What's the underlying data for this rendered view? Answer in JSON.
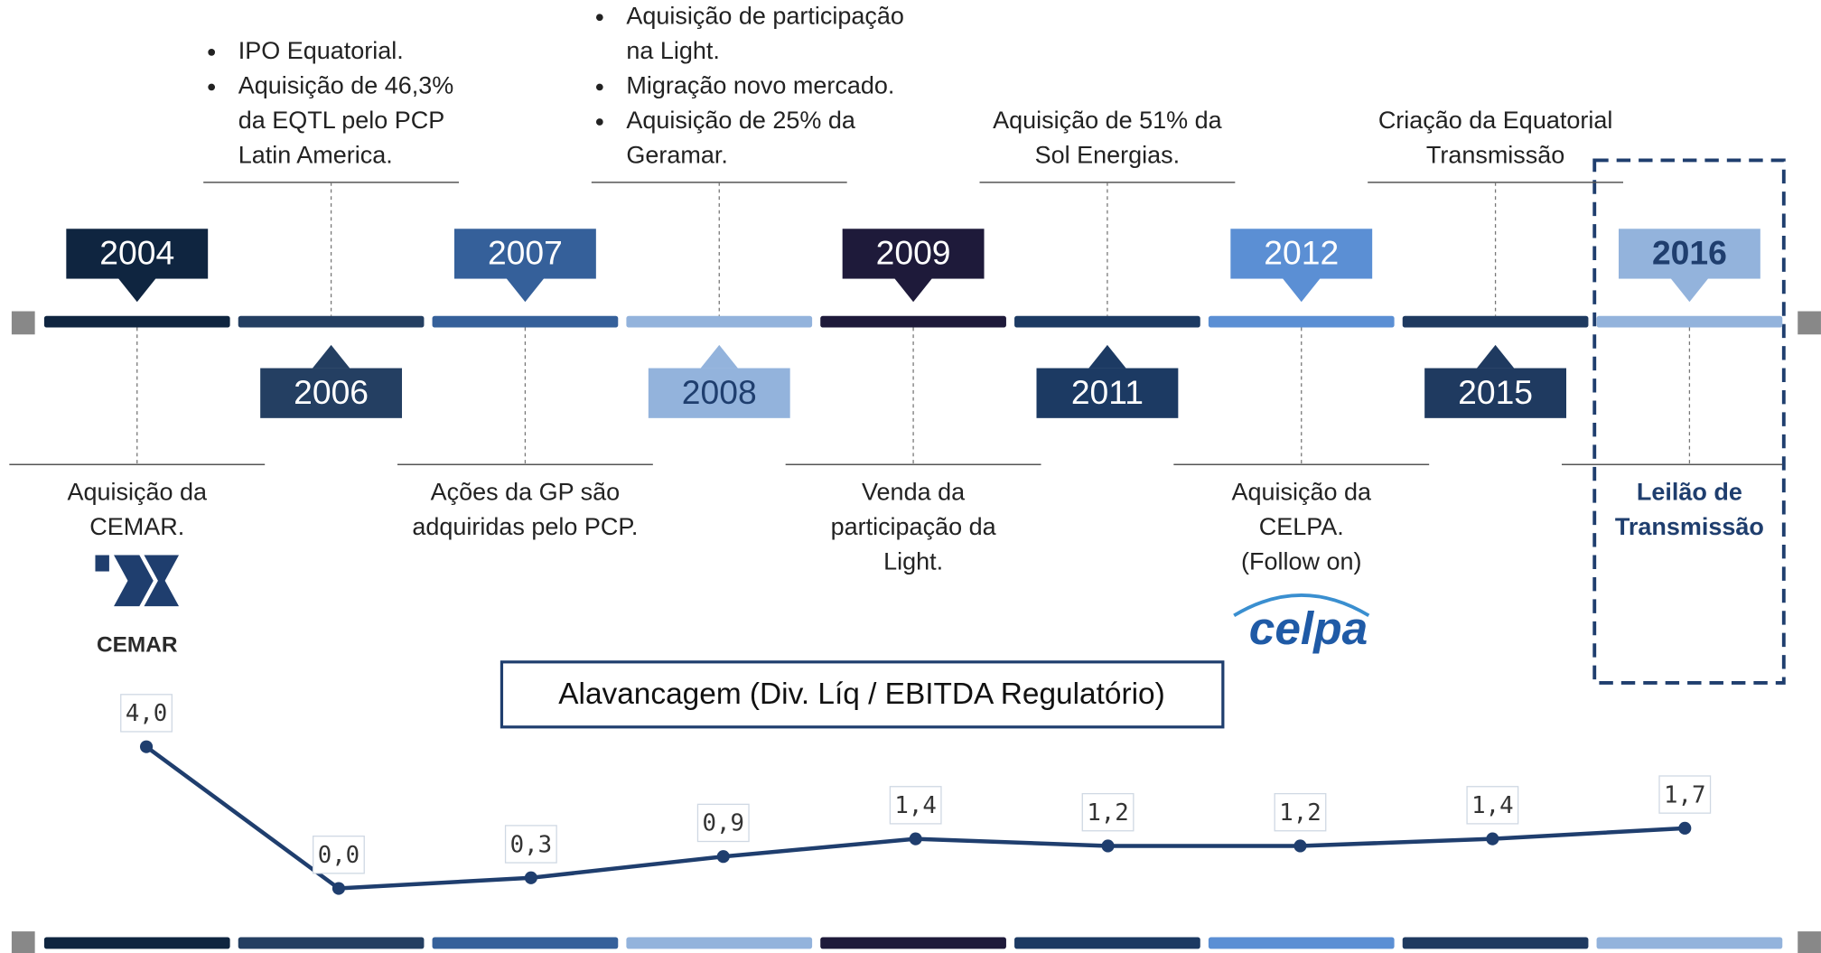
{
  "timeline": {
    "years": [
      "2004",
      "2006",
      "2007",
      "2008",
      "2009",
      "2011",
      "2012",
      "2015",
      "2016"
    ],
    "events": [
      {
        "lines": [
          "Aquisição da",
          "CEMAR."
        ]
      },
      {
        "bullets": [
          [
            "IPO Equatorial."
          ],
          [
            "Aquisição de 46,3%",
            "da EQTL pelo PCP",
            "Latin America."
          ]
        ]
      },
      {
        "lines": [
          "Ações da GP são",
          "adquiridas pelo PCP."
        ]
      },
      {
        "bullets": [
          [
            "Aquisição de participação",
            "na Light."
          ],
          [
            "Migração novo mercado."
          ],
          [
            "Aquisição de 25% da",
            "Geramar."
          ]
        ]
      },
      {
        "lines": [
          "Venda da",
          "participação da",
          "Light."
        ]
      },
      {
        "lines": [
          "Aquisição de 51% da",
          "Sol Energias."
        ]
      },
      {
        "lines": [
          "Aquisição da",
          "CELPA.",
          "(Follow on)"
        ]
      },
      {
        "lines": [
          "Criação da Equatorial",
          "Transmissão"
        ]
      },
      {
        "lines": [
          "Leilão de",
          "Transmissão"
        ]
      }
    ],
    "colors": [
      "#0f2540",
      "#243f62",
      "#35609a",
      "#93b3dc",
      "#1e1a3a",
      "#1c3a63",
      "#5b8fd4",
      "#1f3a60",
      "#93b3dc"
    ],
    "logos": [
      "CEMAR",
      "celpa"
    ]
  },
  "chart_data": {
    "type": "line",
    "title": "Alavancagem (Div. Líq / EBITDA Regulatório)",
    "values": [
      4.0,
      0.0,
      0.3,
      0.9,
      1.4,
      1.2,
      1.2,
      1.4,
      1.7
    ],
    "value_labels": [
      "4,0",
      "0,0",
      "0,3",
      "0,9",
      "1,4",
      "1,2",
      "1,2",
      "1,4",
      "1,7"
    ],
    "color": "#1f3e6e",
    "ylim": [
      0,
      4
    ]
  }
}
